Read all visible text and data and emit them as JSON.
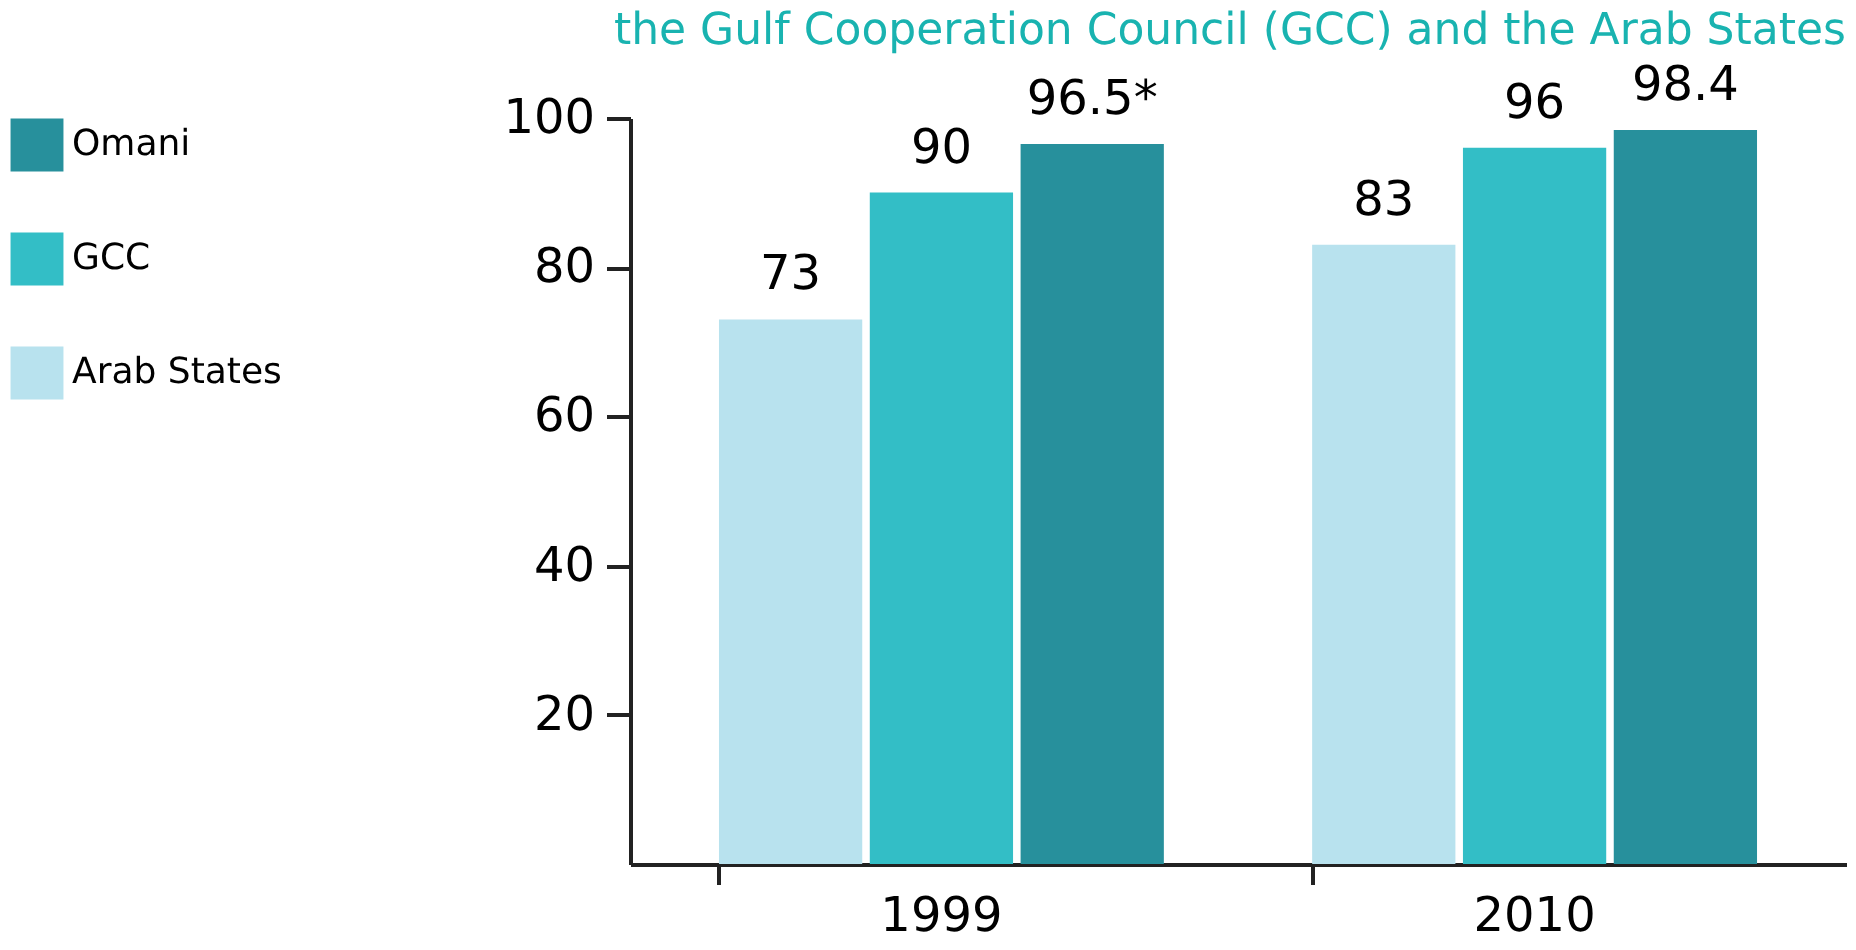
{
  "chart_data": {
    "type": "bar",
    "title": "the Gulf Cooperation Council (GCC) and the Arab States",
    "categories": [
      "1999",
      "2010"
    ],
    "series": [
      {
        "name": "Arab States",
        "color": "#b8e2ee",
        "values": [
          73,
          83
        ],
        "value_labels": [
          "73",
          "83"
        ]
      },
      {
        "name": "GCC",
        "color": "#33bec6",
        "values": [
          90,
          96
        ],
        "value_labels": [
          "90",
          "96"
        ]
      },
      {
        "name": "Omani",
        "color": "#27909c",
        "values": [
          96.5,
          98.4
        ],
        "value_labels": [
          "96.5*",
          "98.4"
        ]
      }
    ],
    "ylim": [
      0,
      100
    ],
    "yticks": [
      20,
      40,
      60,
      80,
      100
    ],
    "grid": false,
    "legend": "left"
  }
}
